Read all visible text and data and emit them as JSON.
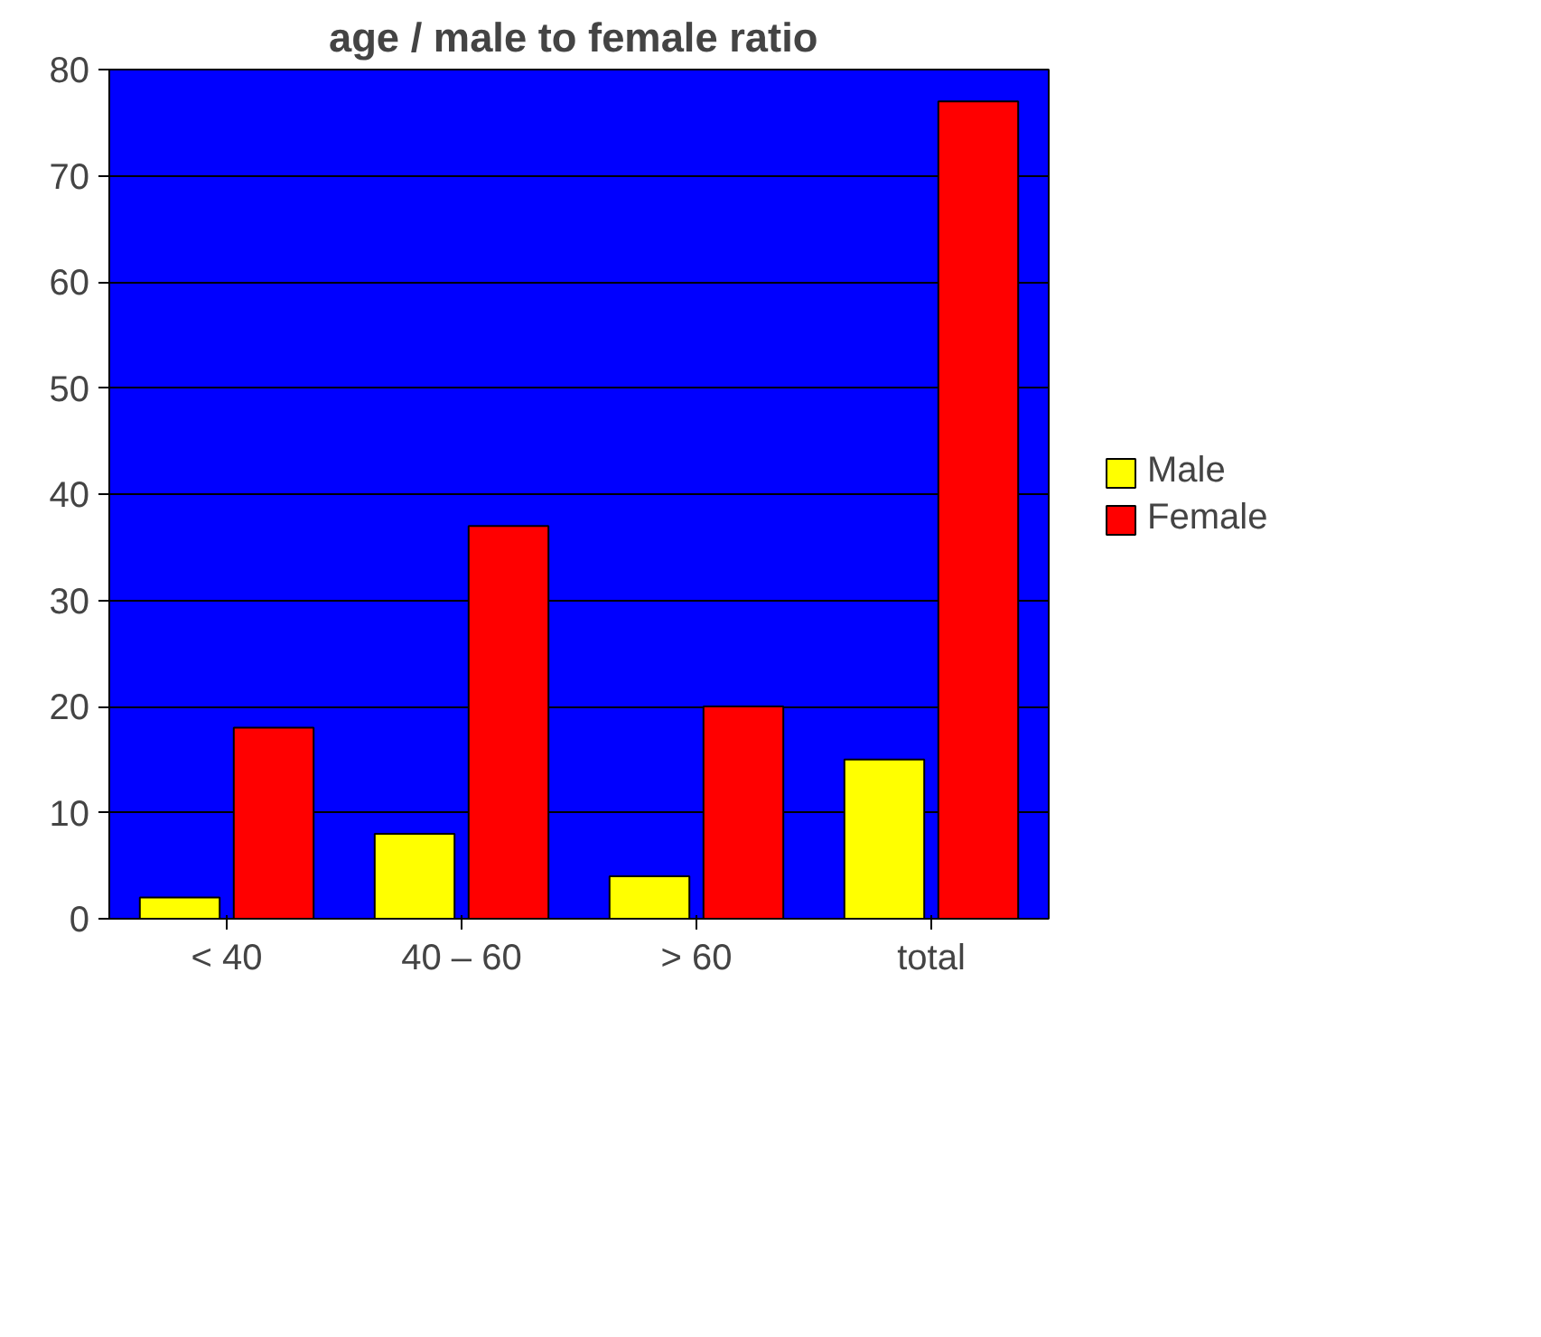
{
  "chart_data": {
    "type": "bar",
    "title": "age  / male to female ratio",
    "categories": [
      "< 40",
      "40 – 60",
      "> 60",
      "total"
    ],
    "series": [
      {
        "name": "Male",
        "color": "#ffff00",
        "values": [
          2,
          8,
          4,
          15
        ]
      },
      {
        "name": "Female",
        "color": "#ff0000",
        "values": [
          18,
          37,
          20,
          77
        ]
      }
    ],
    "ylim": [
      0,
      80
    ],
    "yticks": [
      0,
      10,
      20,
      30,
      40,
      50,
      60,
      70,
      80
    ],
    "grid": "y",
    "legend": "right"
  }
}
